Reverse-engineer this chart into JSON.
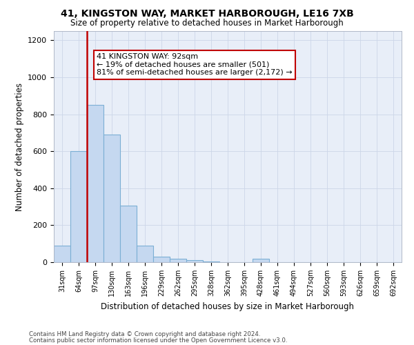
{
  "title1": "41, KINGSTON WAY, MARKET HARBOROUGH, LE16 7XB",
  "title2": "Size of property relative to detached houses in Market Harborough",
  "xlabel": "Distribution of detached houses by size in Market Harborough",
  "ylabel": "Number of detached properties",
  "categories": [
    "31sqm",
    "64sqm",
    "97sqm",
    "130sqm",
    "163sqm",
    "196sqm",
    "229sqm",
    "262sqm",
    "295sqm",
    "328sqm",
    "362sqm",
    "395sqm",
    "428sqm",
    "461sqm",
    "494sqm",
    "527sqm",
    "560sqm",
    "593sqm",
    "626sqm",
    "659sqm",
    "692sqm"
  ],
  "values": [
    90,
    600,
    850,
    690,
    305,
    90,
    30,
    20,
    10,
    5,
    0,
    0,
    20,
    0,
    0,
    0,
    0,
    0,
    0,
    0,
    0
  ],
  "bar_color": "#c5d8f0",
  "bar_edge_color": "#7bafd4",
  "vline_color": "#c00000",
  "annotation_text": "41 KINGSTON WAY: 92sqm\n← 19% of detached houses are smaller (501)\n81% of semi-detached houses are larger (2,172) →",
  "annotation_box_color": "white",
  "annotation_box_edge_color": "#c00000",
  "ylim": [
    0,
    1250
  ],
  "yticks": [
    0,
    200,
    400,
    600,
    800,
    1000,
    1200
  ],
  "footer1": "Contains HM Land Registry data © Crown copyright and database right 2024.",
  "footer2": "Contains public sector information licensed under the Open Government Licence v3.0.",
  "grid_color": "#ccd6e8",
  "background_color": "#e8eef8"
}
